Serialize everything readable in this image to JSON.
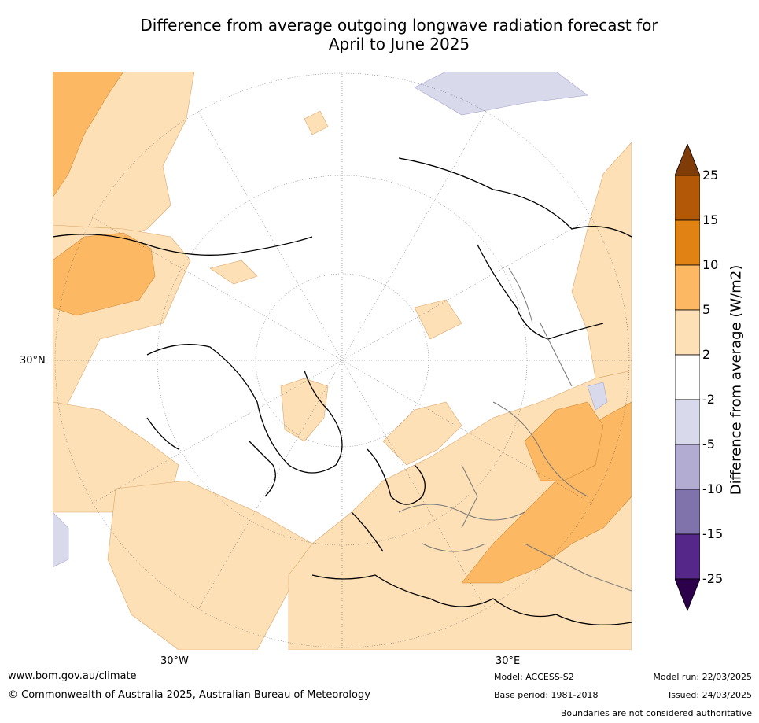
{
  "title_line1": "Difference from average outgoing longwave radiation forecast for",
  "title_line2": "April to June 2025",
  "axes": {
    "lat_30n": "30°N",
    "lon_30w": "30°W",
    "lon_30e": "30°E"
  },
  "colorbar": {
    "label": "Difference from average (W/m2)",
    "ticks": [
      "25",
      "15",
      "10",
      "5",
      "2",
      "-2",
      "-5",
      "-10",
      "-15",
      "-25"
    ],
    "colors": {
      "gt25": "#7f3b08",
      "15_25": "#b35806",
      "10_15": "#e08214",
      "5_10": "#fdb863",
      "2_5": "#fee0b6",
      "m2_2": "#ffffff",
      "m5_m2": "#d8daeb",
      "m10_m5": "#b2abd2",
      "m15_m10": "#8073ac",
      "m25_m15": "#542788",
      "lt_m25": "#2d004b"
    }
  },
  "footer": {
    "website": "www.bom.gov.au/climate",
    "copyright": "© Commonwealth of Australia 2025, Australian Bureau of Meteorology",
    "model": "Model: ACCESS-S2",
    "base_period": "Base period: 1981-2018",
    "model_run": "Model run: 22/03/2025",
    "issued": "Issued: 24/03/2025",
    "disclaimer": "Boundaries are not considered authoritative"
  }
}
